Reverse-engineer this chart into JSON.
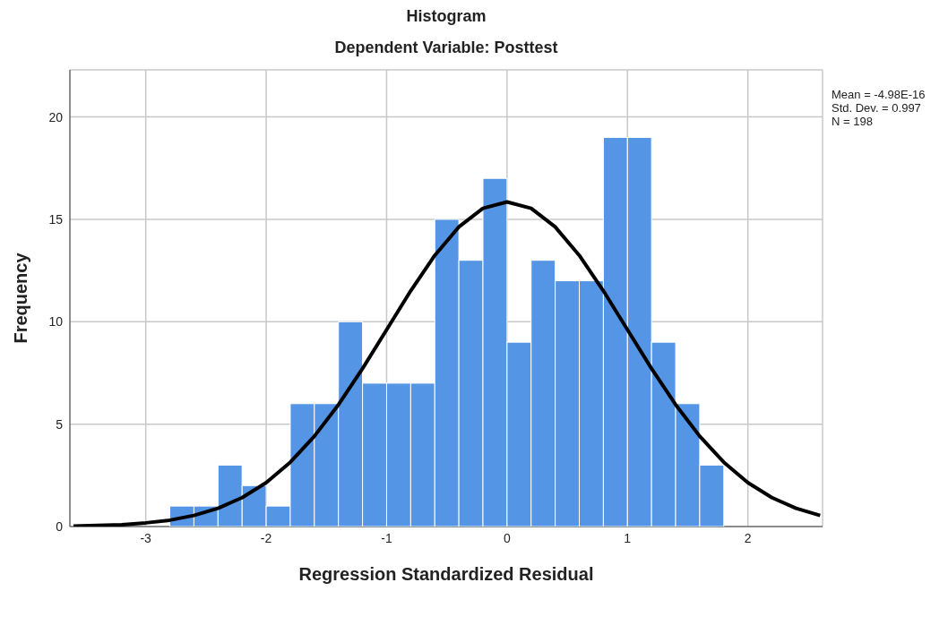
{
  "chart_data": {
    "type": "histogram",
    "title": "Histogram",
    "subtitle": "Dependent Variable: Posttest",
    "xlabel": "Regression Standardized Residual",
    "ylabel": "Frequency",
    "bins": [
      -2.8,
      -2.6,
      -2.4,
      -2.2,
      -2.0,
      -1.8,
      -1.6,
      -1.4,
      -1.2,
      -1.0,
      -0.8,
      -0.6,
      -0.4,
      -0.2,
      0.0,
      0.2,
      0.4,
      0.6,
      0.8,
      1.0,
      1.2,
      1.4,
      1.6,
      1.8
    ],
    "values": [
      1,
      1,
      3,
      2,
      1,
      6,
      6,
      10,
      7,
      7,
      7,
      15,
      13,
      17,
      9,
      13,
      12,
      12,
      19,
      19,
      9,
      6,
      3
    ],
    "color": "#5595e5",
    "series": [
      {
        "type": "line",
        "color": "#000000",
        "x": [
          -3.6,
          -3.4,
          -3.2,
          -3.0,
          -2.8,
          -2.6,
          -2.4,
          -2.2,
          -2.0,
          -1.8,
          -1.6,
          -1.4,
          -1.2,
          -1.0,
          -0.8,
          -0.6,
          -0.4,
          -0.2,
          0.0,
          0.2,
          0.4,
          0.6,
          0.8,
          1.0,
          1.2,
          1.4,
          1.6,
          1.8,
          2.0,
          2.2,
          2.4,
          2.6
        ],
        "values": [
          0.02,
          0.05,
          0.09,
          0.18,
          0.31,
          0.54,
          0.89,
          1.41,
          2.14,
          3.14,
          4.41,
          5.95,
          7.71,
          9.61,
          11.51,
          13.24,
          14.63,
          15.54,
          15.85,
          15.54,
          14.63,
          13.24,
          11.51,
          9.61,
          7.71,
          5.95,
          4.41,
          3.14,
          2.14,
          1.41,
          0.89,
          0.54
        ]
      }
    ],
    "xlim": [
      -3.63,
      2.62
    ],
    "ylim": [
      0,
      22.3
    ],
    "xticks": [
      -3,
      -2,
      -1,
      0,
      1,
      2
    ],
    "yticks": [
      0,
      5,
      10,
      15,
      20
    ],
    "grid": true,
    "annotations": [
      "Mean = -4.98E-16",
      "Std. Dev. = 0.997",
      "N = 198"
    ]
  }
}
